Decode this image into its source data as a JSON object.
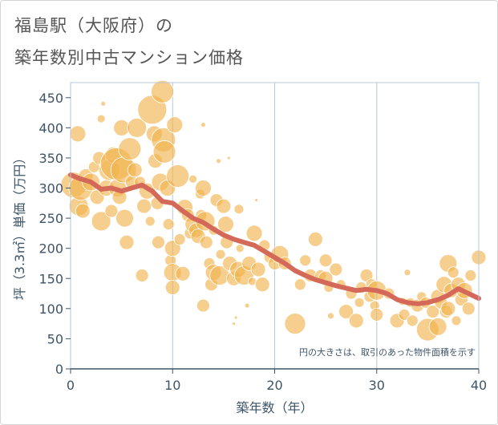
{
  "title_line1": "福島駅（大阪府）の",
  "title_line2": "築年数別中古マンション価格",
  "chart_data": {
    "type": "scatter",
    "title": "福島駅（大阪府）の 築年数別中古マンション価格",
    "xlabel": "築年数（年）",
    "ylabel": "坪（3.3㎡）単価（万円）",
    "xlim": [
      0,
      40
    ],
    "ylim": [
      0,
      475
    ],
    "x_ticks": [
      "0",
      "10",
      "20",
      "30",
      "40"
    ],
    "y_ticks": [
      "0",
      "50",
      "100",
      "150",
      "200",
      "250",
      "300",
      "350",
      "400",
      "450"
    ],
    "grid": true,
    "note": "円の大きさは、取引のあった物件面積を示す",
    "colors": {
      "bubble": "#f0b24a",
      "trend": "#d4695a",
      "grid": "#b8c7d6",
      "text": "#3e5467"
    },
    "series": [
      {
        "kind": "bubble",
        "points": [
          [
            0.3,
            305,
            16
          ],
          [
            0.7,
            390,
            10
          ],
          [
            0.8,
            270,
            12
          ],
          [
            1,
            300,
            15
          ],
          [
            1.2,
            262,
            9
          ],
          [
            1.5,
            320,
            9
          ],
          [
            2,
            310,
            11
          ],
          [
            2.3,
            335,
            7
          ],
          [
            2.6,
            285,
            9
          ],
          [
            2.8,
            350,
            8
          ],
          [
            3,
            245,
            12
          ],
          [
            3,
            415,
            5
          ],
          [
            3.2,
            440,
            3
          ],
          [
            3.5,
            300,
            10
          ],
          [
            3.8,
            330,
            13
          ],
          [
            4,
            262,
            8
          ],
          [
            4.2,
            355,
            10
          ],
          [
            4.5,
            340,
            20
          ],
          [
            4.6,
            300,
            11
          ],
          [
            4.8,
            285,
            9
          ],
          [
            5,
            400,
            10
          ],
          [
            5.2,
            330,
            16
          ],
          [
            5.3,
            250,
            11
          ],
          [
            5.5,
            210,
            9
          ],
          [
            5.8,
            365,
            14
          ],
          [
            6,
            310,
            8
          ],
          [
            6.3,
            330,
            9
          ],
          [
            6.5,
            400,
            12
          ],
          [
            6.8,
            310,
            7
          ],
          [
            7,
            155,
            8
          ],
          [
            7.2,
            270,
            9
          ],
          [
            7.5,
            295,
            10
          ],
          [
            7.8,
            245,
            6
          ],
          [
            8,
            430,
            18
          ],
          [
            8.2,
            390,
            10
          ],
          [
            8.3,
            345,
            9
          ],
          [
            8.5,
            275,
            8
          ],
          [
            8.6,
            210,
            8
          ],
          [
            8.8,
            310,
            11
          ],
          [
            9,
            460,
            14
          ],
          [
            9.1,
            380,
            15
          ],
          [
            9.2,
            360,
            14
          ],
          [
            9.5,
            300,
            10
          ],
          [
            9.6,
            240,
            7
          ],
          [
            9.8,
            180,
            7
          ],
          [
            10,
            160,
            11
          ],
          [
            10,
            135,
            9
          ],
          [
            10,
            200,
            10
          ],
          [
            10.2,
            405,
            10
          ],
          [
            10.5,
            320,
            14
          ],
          [
            10.7,
            215,
            7
          ],
          [
            11,
            158,
            9
          ],
          [
            11.2,
            268,
            10
          ],
          [
            11.5,
            255,
            8
          ],
          [
            11.7,
            225,
            7
          ],
          [
            12,
            315,
            5
          ],
          [
            12,
            240,
            10
          ],
          [
            12.3,
            230,
            9
          ],
          [
            12.5,
            220,
            9
          ],
          [
            12.7,
            290,
            6
          ],
          [
            12.8,
            255,
            7
          ],
          [
            13,
            405,
            3
          ],
          [
            13,
            300,
            10
          ],
          [
            13,
            105,
            8
          ],
          [
            13.2,
            245,
            12
          ],
          [
            13.3,
            210,
            8
          ],
          [
            13.6,
            175,
            7
          ],
          [
            13.8,
            140,
            8
          ],
          [
            14,
            230,
            6
          ],
          [
            14,
            160,
            10
          ],
          [
            14.3,
            280,
            8
          ],
          [
            14.5,
            345,
            3
          ],
          [
            14.6,
            155,
            12
          ],
          [
            14.7,
            190,
            6
          ],
          [
            15,
            270,
            9
          ],
          [
            15.2,
            240,
            10
          ],
          [
            15.3,
            210,
            8
          ],
          [
            15.5,
            350,
            2
          ],
          [
            15.6,
            175,
            9
          ],
          [
            16,
            150,
            9
          ],
          [
            16,
            75,
            2
          ],
          [
            16.2,
            85,
            2
          ],
          [
            16.4,
            165,
            10
          ],
          [
            16.5,
            265,
            6
          ],
          [
            16.6,
            200,
            5
          ],
          [
            17,
            155,
            12
          ],
          [
            17.3,
            105,
            3
          ],
          [
            17.5,
            175,
            9
          ],
          [
            17.8,
            145,
            5
          ],
          [
            18,
            225,
            10
          ],
          [
            18.2,
            280,
            2
          ],
          [
            18.4,
            165,
            9
          ],
          [
            18.8,
            140,
            9
          ],
          [
            19,
            205,
            7
          ],
          [
            19.5,
            185,
            7
          ],
          [
            20,
            175,
            8
          ],
          [
            20.5,
            190,
            11
          ],
          [
            21,
            175,
            8
          ],
          [
            22,
            75,
            13
          ],
          [
            22.5,
            140,
            7
          ],
          [
            23,
            180,
            7
          ],
          [
            23.5,
            155,
            8
          ],
          [
            24,
            215,
            9
          ],
          [
            24.5,
            155,
            7
          ],
          [
            25,
            180,
            8
          ],
          [
            25,
            150,
            9
          ],
          [
            25.3,
            135,
            6
          ],
          [
            25.5,
            88,
            4
          ],
          [
            26,
            165,
            8
          ],
          [
            26.5,
            140,
            6
          ],
          [
            27,
            95,
            9
          ],
          [
            27.5,
            125,
            7
          ],
          [
            28,
            80,
            9
          ],
          [
            28.3,
            110,
            6
          ],
          [
            28.5,
            135,
            7
          ],
          [
            29,
            155,
            8
          ],
          [
            29.3,
            120,
            7
          ],
          [
            29.5,
            140,
            7
          ],
          [
            29.8,
            105,
            6
          ],
          [
            30,
            90,
            8
          ],
          [
            30,
            130,
            12
          ],
          [
            31.2,
            125,
            7
          ],
          [
            32,
            80,
            9
          ],
          [
            32.5,
            112,
            5
          ],
          [
            32.7,
            90,
            7
          ],
          [
            33,
            160,
            4
          ],
          [
            33.3,
            110,
            6
          ],
          [
            33.5,
            80,
            7
          ],
          [
            34,
            105,
            8
          ],
          [
            34.4,
            120,
            6
          ],
          [
            34.8,
            110,
            7
          ],
          [
            35,
            65,
            14
          ],
          [
            35.5,
            95,
            8
          ],
          [
            36,
            70,
            11
          ],
          [
            36,
            120,
            9
          ],
          [
            36.3,
            110,
            8
          ],
          [
            36.6,
            140,
            10
          ],
          [
            36.8,
            95,
            8
          ],
          [
            37,
            175,
            11
          ],
          [
            37,
            100,
            9
          ],
          [
            37.3,
            130,
            9
          ],
          [
            37.5,
            160,
            7
          ],
          [
            37.8,
            80,
            6
          ],
          [
            38,
            140,
            9
          ],
          [
            38.3,
            115,
            8
          ],
          [
            38.6,
            130,
            10
          ],
          [
            39,
            100,
            8
          ],
          [
            39.2,
            155,
            7
          ],
          [
            40,
            185,
            9
          ]
        ]
      },
      {
        "kind": "line",
        "name": "",
        "x": [
          0,
          1,
          2,
          3,
          4,
          5,
          6,
          7,
          8,
          9,
          10,
          11,
          12,
          13,
          14,
          15,
          16,
          17,
          18,
          19,
          20,
          21,
          22,
          23,
          24,
          25,
          26,
          27,
          28,
          29,
          30,
          31,
          32,
          33,
          34,
          35,
          36,
          37,
          38,
          39,
          40
        ],
        "y": [
          322,
          315,
          310,
          298,
          300,
          295,
          300,
          305,
          295,
          278,
          275,
          262,
          250,
          243,
          232,
          222,
          215,
          210,
          205,
          195,
          185,
          175,
          163,
          155,
          148,
          143,
          138,
          134,
          130,
          132,
          130,
          125,
          115,
          110,
          108,
          110,
          115,
          122,
          133,
          125,
          117
        ]
      }
    ]
  }
}
